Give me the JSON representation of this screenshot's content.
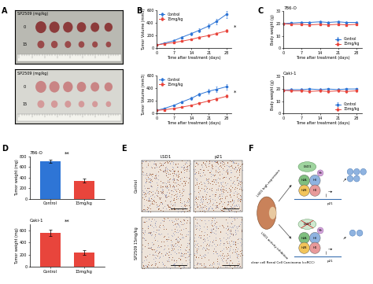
{
  "panel_labels": [
    "A",
    "B",
    "C",
    "D",
    "E",
    "F"
  ],
  "photos": [
    {
      "label": "SP2509 (mg/kg)",
      "rows": [
        "0",
        "15"
      ]
    },
    {
      "label": "SP2509 (mg/kg)",
      "rows": [
        "0",
        "15"
      ]
    }
  ],
  "chart_data": [
    {
      "type": "line",
      "x_label": "Time after treatment (days)",
      "y_label": "Tumor Volume (mm3)",
      "x": [
        0,
        3,
        7,
        10,
        14,
        17,
        21,
        24,
        28
      ],
      "series": [
        {
          "name": "Control",
          "color": "#2e75d6",
          "marker": "circle",
          "values": [
            50,
            80,
            120,
            170,
            230,
            280,
            350,
            420,
            530
          ],
          "errors": [
            5,
            10,
            15,
            20,
            25,
            30,
            35,
            40,
            55
          ]
        },
        {
          "name": "15mg/kg",
          "color": "#e8453c",
          "marker": "square",
          "values": [
            50,
            70,
            90,
            110,
            140,
            170,
            200,
            230,
            270
          ],
          "errors": [
            5,
            8,
            10,
            12,
            15,
            18,
            20,
            22,
            25
          ]
        }
      ],
      "xlim": [
        0,
        30
      ],
      "xticks": [
        0,
        7,
        14,
        21,
        28
      ],
      "ylim": [
        0,
        600
      ],
      "yticks": [
        0,
        200,
        400,
        600
      ],
      "legend": "upper left",
      "annotations": [
        "*"
      ]
    },
    {
      "type": "line",
      "x_label": "Time after treatment (days)",
      "y_label": "Tumor Volume (mm3)",
      "x": [
        0,
        3,
        7,
        10,
        14,
        17,
        21,
        24,
        28
      ],
      "series": [
        {
          "name": "Control",
          "color": "#2e75d6",
          "marker": "circle",
          "values": [
            50,
            80,
            130,
            180,
            240,
            300,
            350,
            380,
            420
          ],
          "errors": [
            5,
            10,
            15,
            20,
            25,
            30,
            35,
            40,
            45
          ]
        },
        {
          "name": "15mg/kg",
          "color": "#e8453c",
          "marker": "square",
          "values": [
            50,
            60,
            80,
            100,
            130,
            160,
            200,
            230,
            270
          ],
          "errors": [
            5,
            8,
            10,
            12,
            15,
            18,
            20,
            22,
            25
          ]
        }
      ],
      "xlim": [
        0,
        30
      ],
      "xticks": [
        0,
        7,
        14,
        21,
        28
      ],
      "ylim": [
        0,
        600
      ],
      "yticks": [
        0,
        200,
        400,
        600
      ],
      "legend": "upper left",
      "annotations": [
        "*"
      ]
    },
    {
      "type": "line",
      "title": "786-O",
      "x_label": "Time after treatment (days)",
      "y_label": "Body weight (g)",
      "x": [
        0,
        3,
        7,
        10,
        14,
        17,
        21,
        24,
        28
      ],
      "series": [
        {
          "name": "Control",
          "color": "#2e75d6",
          "marker": "circle",
          "values": [
            20,
            20.5,
            21,
            21,
            21.5,
            21,
            21.5,
            21,
            21
          ],
          "errors": [
            1,
            1,
            1,
            1,
            1,
            1,
            1,
            1,
            1
          ]
        },
        {
          "name": "15mg/kg",
          "color": "#e8453c",
          "marker": "square",
          "values": [
            20,
            19.5,
            19.5,
            19,
            19.5,
            19,
            19.5,
            19,
            19.5
          ],
          "errors": [
            1,
            1,
            1,
            1,
            1,
            1,
            1,
            1,
            1
          ]
        }
      ],
      "xlim": [
        0,
        30
      ],
      "xticks": [
        0,
        7,
        14,
        21,
        28
      ],
      "ylim": [
        0,
        30
      ],
      "yticks": [
        0,
        10,
        20,
        30
      ],
      "legend": "lower right"
    },
    {
      "type": "line",
      "title": "Caki-1",
      "x_label": "Time after treatment (days)",
      "y_label": "Body weight (g)",
      "x": [
        0,
        3,
        7,
        10,
        14,
        17,
        21,
        24,
        28
      ],
      "series": [
        {
          "name": "Control",
          "color": "#2e75d6",
          "marker": "circle",
          "values": [
            19,
            19.5,
            19.5,
            20,
            19.5,
            20,
            19.5,
            20,
            20
          ],
          "errors": [
            1,
            1,
            1,
            1,
            1,
            1,
            1,
            1,
            1
          ]
        },
        {
          "name": "15mg/kg",
          "color": "#e8453c",
          "marker": "square",
          "values": [
            19,
            18.5,
            18.5,
            18,
            18.5,
            18,
            18.5,
            18,
            18.5
          ],
          "errors": [
            1,
            1,
            1,
            1,
            1,
            1,
            1,
            1,
            1
          ]
        }
      ],
      "xlim": [
        0,
        30
      ],
      "xticks": [
        0,
        7,
        14,
        21,
        28
      ],
      "ylim": [
        0,
        30
      ],
      "yticks": [
        0,
        10,
        20,
        30
      ],
      "legend": "lower right"
    },
    {
      "type": "bar",
      "title": "786-O",
      "y_label": "Tumor weight (mg)",
      "categories": [
        "Control",
        "15mg/kg"
      ],
      "values": [
        700,
        340
      ],
      "errors": [
        30,
        40
      ],
      "colors": [
        "#2e75d6",
        "#e8453c"
      ],
      "ylim": [
        0,
        800
      ],
      "yticks": [
        0,
        200,
        400,
        600,
        800
      ],
      "annotations": [
        "**"
      ]
    },
    {
      "type": "bar",
      "title": "Caki-1",
      "y_label": "Tumor weight (mg)",
      "categories": [
        "Control",
        "15mg/kg"
      ],
      "values": [
        560,
        240
      ],
      "errors": [
        50,
        40
      ],
      "colors": [
        "#e8453c",
        "#e8453c"
      ],
      "ylim": [
        0,
        700
      ],
      "yticks": [
        0,
        200,
        400,
        600
      ],
      "annotations": [
        "**"
      ]
    }
  ],
  "ihc": {
    "columns": [
      "LSD1",
      "p21"
    ],
    "rows": [
      "Control",
      "SP2509 15mg/kg"
    ]
  },
  "diagram": {
    "high": "LSD1 high expression",
    "inhibition": "LSD1 activity inhibition",
    "cancer": "clear cell Renal Cell Carcinoma (ccRCC)",
    "enzyme": "LSD1",
    "mark": "Me",
    "histones": [
      "H2A",
      "H3",
      "H2B",
      "H4"
    ],
    "gene": "p21"
  }
}
